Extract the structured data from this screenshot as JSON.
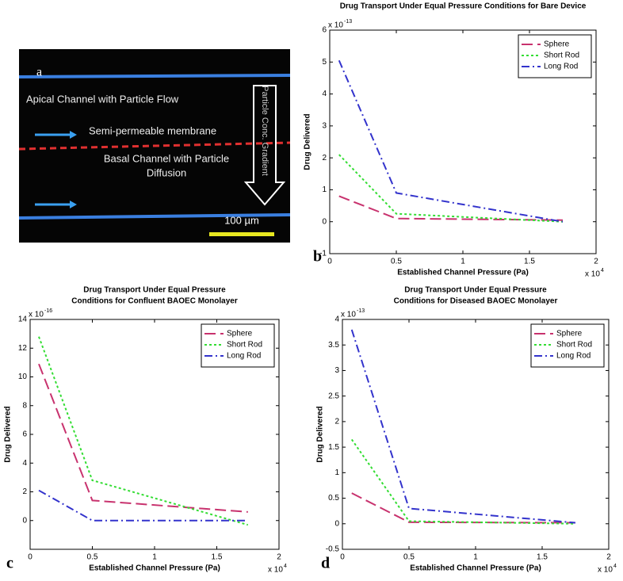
{
  "panel_a": {
    "label": "a",
    "top_text": "Apical Channel with Particle Flow",
    "membrane_text": "Semi-permeable membrane",
    "bottom_text": [
      "Basal Channel with Particle",
      "Diffusion"
    ],
    "gradient_text": "Particle Conc. Gradient",
    "scale_text": "100 µm"
  },
  "chart_data": [
    {
      "type": "line",
      "panel_label": "b",
      "title": [
        "Drug Transport Under Equal Pressure Conditions for Bare Device"
      ],
      "xlabel": "Established Channel Pressure (Pa)",
      "ylabel": "Drug Delivered",
      "x_scale": [
        "x 10",
        "4"
      ],
      "y_scale": [
        "x 10",
        "-13"
      ],
      "x": [
        0.07,
        0.5,
        1.75
      ],
      "xlim": [
        0,
        2
      ],
      "xticks": [
        0,
        0.5,
        1,
        1.5,
        2
      ],
      "ylim": [
        -1,
        6
      ],
      "yticks": [
        -1,
        0,
        1,
        2,
        3,
        4,
        5,
        6
      ],
      "legend": "upper right",
      "series": [
        {
          "name": "Sphere",
          "color": "#c8326e",
          "values": [
            0.8,
            0.1,
            0.05
          ]
        },
        {
          "name": "Short Rod",
          "color": "#33dd33",
          "values": [
            2.1,
            0.25,
            0.0
          ]
        },
        {
          "name": "Long Rod",
          "color": "#3333cc",
          "values": [
            5.05,
            0.9,
            0.0
          ]
        }
      ]
    },
    {
      "type": "line",
      "panel_label": "c",
      "title": [
        "Drug Transport Under Equal Pressure",
        "Conditions for Confluent BAOEC Monolayer"
      ],
      "xlabel": "Established Channel Pressure (Pa)",
      "ylabel": "Drug Delivered",
      "x_scale": [
        "x 10",
        "4"
      ],
      "y_scale": [
        "x 10",
        "-16"
      ],
      "x": [
        0.07,
        0.5,
        1.75
      ],
      "xlim": [
        0,
        2
      ],
      "xticks": [
        0,
        0.5,
        1,
        1.5,
        2
      ],
      "ylim": [
        -2,
        14
      ],
      "yticks": [
        0,
        2,
        4,
        6,
        8,
        10,
        12,
        14
      ],
      "legend": "upper right",
      "series": [
        {
          "name": "Sphere",
          "color": "#c8326e",
          "values": [
            10.9,
            1.4,
            0.6
          ]
        },
        {
          "name": "Short Rod",
          "color": "#33dd33",
          "values": [
            12.8,
            2.8,
            -0.3
          ]
        },
        {
          "name": "Long Rod",
          "color": "#3333cc",
          "values": [
            2.1,
            0,
            0
          ]
        }
      ]
    },
    {
      "type": "line",
      "panel_label": "d",
      "title": [
        "Drug Transport Under Equal Pressure",
        "Conditions for Diseased BAOEC Monolayer"
      ],
      "xlabel": "Established Channel Pressure (Pa)",
      "ylabel": "Drug Delivered",
      "x_scale": [
        "x 10",
        "4"
      ],
      "y_scale": [
        "x 10",
        "-13"
      ],
      "x": [
        0.07,
        0.5,
        1.75
      ],
      "xlim": [
        0,
        2
      ],
      "xticks": [
        0,
        0.5,
        1,
        1.5,
        2
      ],
      "ylim": [
        -0.5,
        4
      ],
      "yticks": [
        -0.5,
        0,
        0.5,
        1,
        1.5,
        2,
        2.5,
        3,
        3.5,
        4
      ],
      "legend": "upper right",
      "series": [
        {
          "name": "Sphere",
          "color": "#c8326e",
          "values": [
            0.6,
            0.03,
            0.02
          ]
        },
        {
          "name": "Short Rod",
          "color": "#33dd33",
          "values": [
            1.65,
            0.05,
            0.0
          ]
        },
        {
          "name": "Long Rod",
          "color": "#3333cc",
          "values": [
            3.8,
            0.3,
            0.02
          ]
        }
      ]
    }
  ]
}
